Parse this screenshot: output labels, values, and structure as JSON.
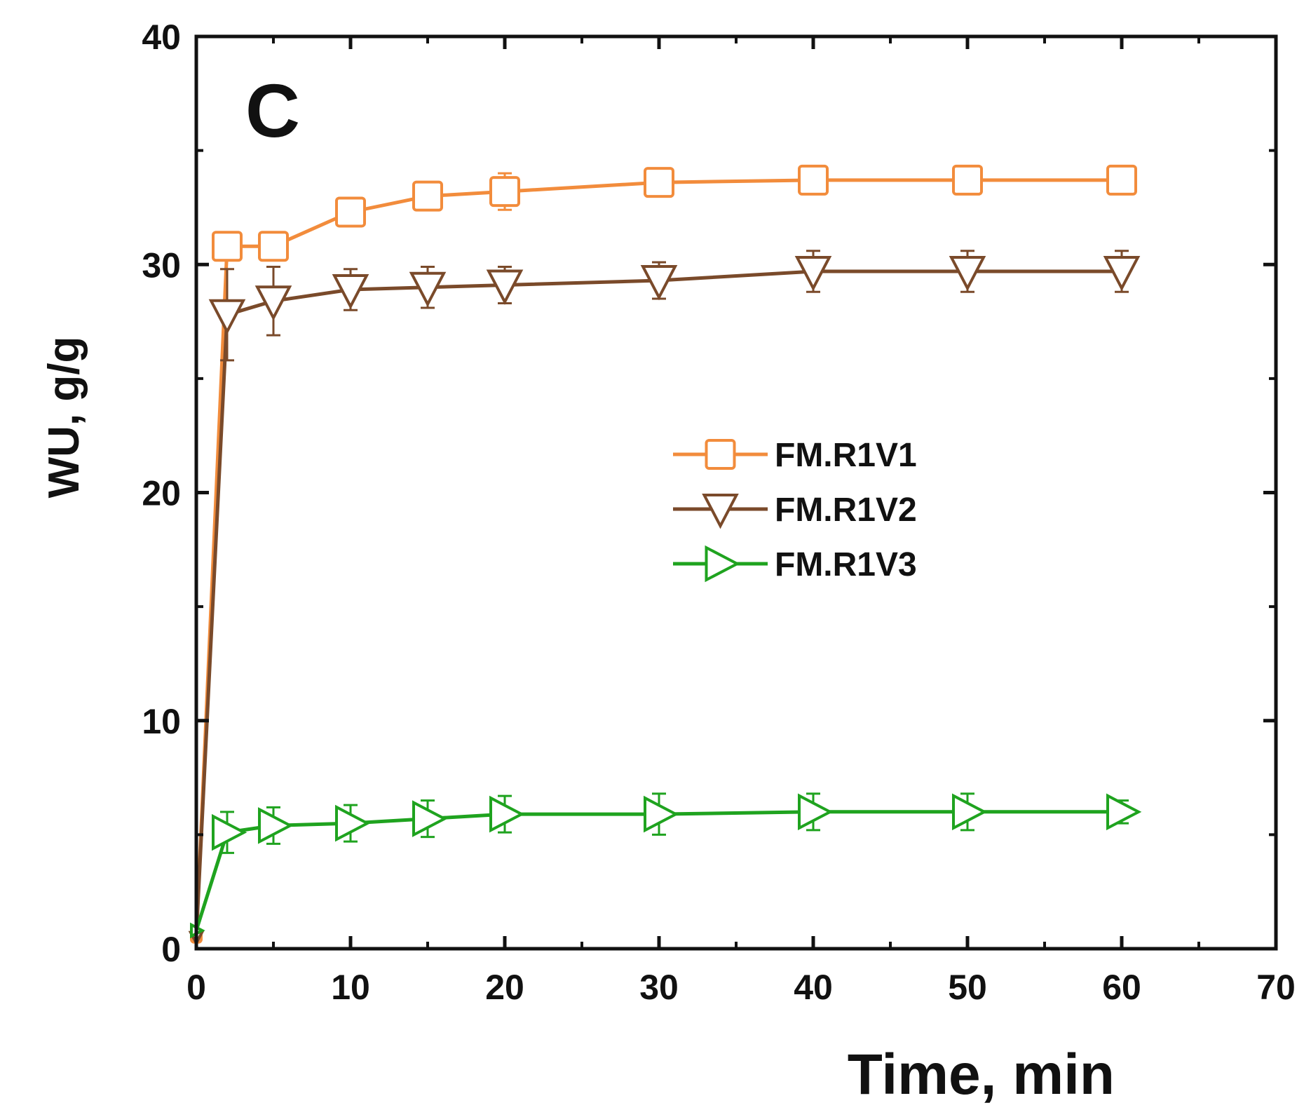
{
  "chart_data": {
    "type": "line",
    "panel_label": "C",
    "xlabel": "Time, min",
    "ylabel": "WU, g/g",
    "xlim": [
      0,
      70
    ],
    "ylim": [
      0,
      40
    ],
    "xticks": [
      0,
      10,
      20,
      30,
      40,
      50,
      60,
      70
    ],
    "yticks": [
      0,
      10,
      20,
      30,
      40
    ],
    "legend_position": "center-right",
    "series": [
      {
        "name": "FM.R1V1",
        "color": "#f28c3c",
        "marker": "square",
        "x": [
          0,
          2,
          5,
          10,
          15,
          20,
          30,
          40,
          50,
          60
        ],
        "y": [
          0.5,
          30.8,
          30.8,
          32.3,
          33.0,
          33.2,
          33.6,
          33.7,
          33.7,
          33.7
        ],
        "err": [
          0,
          0.5,
          0.5,
          0.5,
          0.4,
          0.8,
          0.6,
          0.6,
          0.5,
          0.5
        ]
      },
      {
        "name": "FM.R1V2",
        "color": "#7a4a2a",
        "marker": "triangle-down",
        "x": [
          0,
          2,
          5,
          10,
          15,
          20,
          30,
          40,
          50,
          60
        ],
        "y": [
          0.5,
          27.8,
          28.4,
          28.9,
          29.0,
          29.1,
          29.3,
          29.7,
          29.7,
          29.7
        ],
        "err": [
          0,
          2.0,
          1.5,
          0.9,
          0.9,
          0.8,
          0.8,
          0.9,
          0.9,
          0.9
        ]
      },
      {
        "name": "FM.R1V3",
        "color": "#1fa31f",
        "marker": "triangle-right",
        "x": [
          0,
          2,
          5,
          10,
          15,
          20,
          30,
          40,
          50,
          60
        ],
        "y": [
          0.8,
          5.1,
          5.4,
          5.5,
          5.7,
          5.9,
          5.9,
          6.0,
          6.0,
          6.0
        ],
        "err": [
          0,
          0.9,
          0.8,
          0.8,
          0.8,
          0.8,
          0.9,
          0.8,
          0.8,
          0.5
        ]
      }
    ]
  }
}
